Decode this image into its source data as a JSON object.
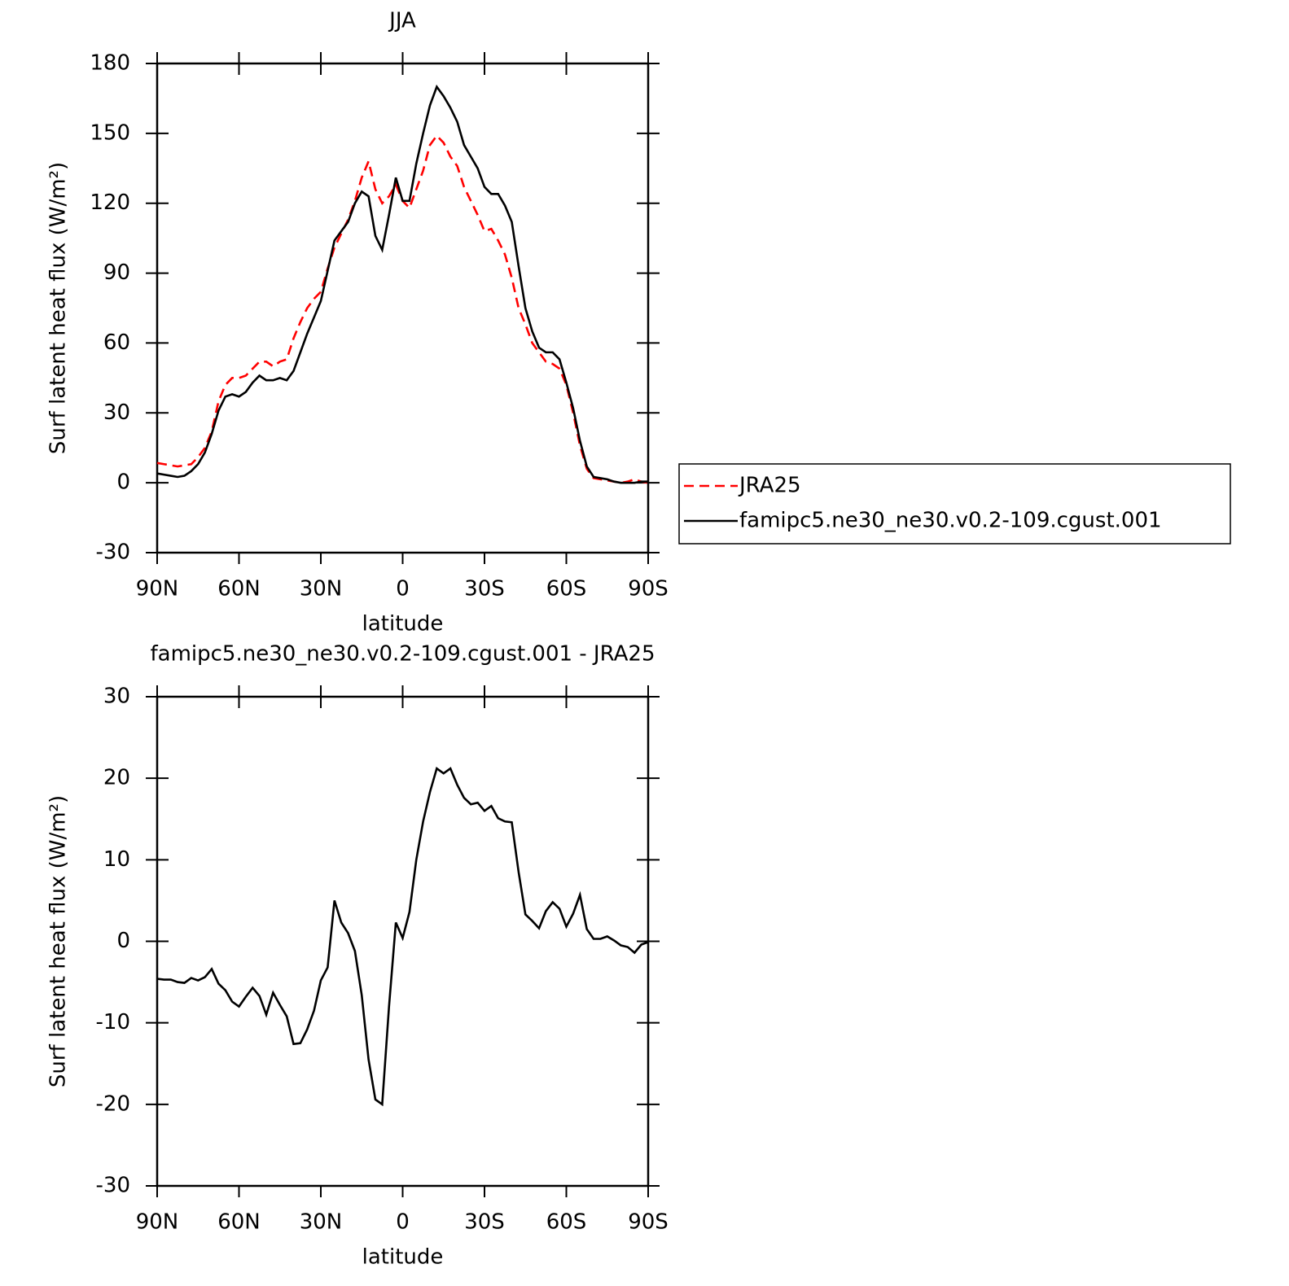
{
  "chart_data": [
    {
      "type": "line",
      "title": "JJA",
      "xlabel": "latitude",
      "ylabel": "Surf latent heat flux (W/m²)",
      "x": [
        90,
        87.5,
        85,
        82.5,
        80,
        77.5,
        75,
        72.5,
        70,
        67.5,
        65,
        62.5,
        60,
        57.5,
        55,
        52.5,
        50,
        47.5,
        45,
        42.5,
        40,
        37.5,
        35,
        32.5,
        30,
        27.5,
        25,
        22.5,
        20,
        17.5,
        15,
        12.5,
        10,
        7.5,
        5,
        2.5,
        0,
        -2.5,
        -5,
        -7.5,
        -10,
        -12.5,
        -15,
        -17.5,
        -20,
        -22.5,
        -25,
        -27.5,
        -30,
        -32.5,
        -35,
        -37.5,
        -40,
        -42.5,
        -45,
        -47.5,
        -50,
        -52.5,
        -55,
        -57.5,
        -60,
        -62.5,
        -65,
        -67.5,
        -70,
        -72.5,
        -75,
        -77.5,
        -80,
        -82.5,
        -85,
        -87.5,
        -90
      ],
      "xlim": [
        90,
        -90
      ],
      "xticks": [
        {
          "value": 90,
          "label": "90N"
        },
        {
          "value": 60,
          "label": "60N"
        },
        {
          "value": 30,
          "label": "30N"
        },
        0,
        {
          "value": -30,
          "label": "30S"
        },
        {
          "value": -60,
          "label": "60S"
        },
        {
          "value": -90,
          "label": "90S"
        }
      ],
      "ylim": [
        -30,
        180
      ],
      "yticks": [
        -30,
        0,
        30,
        60,
        90,
        120,
        150,
        180
      ],
      "legend": "right",
      "series": [
        {
          "name": "JRA25",
          "color": "#ff0000",
          "dash": "dashed",
          "values": [
            8.5,
            8,
            7.5,
            7,
            7.5,
            8,
            11,
            15,
            22,
            35,
            42,
            45,
            45,
            46,
            49,
            52,
            52,
            50,
            52,
            53,
            62,
            69,
            75,
            79,
            82,
            92,
            101,
            107,
            113,
            121,
            131,
            138,
            126,
            120,
            123,
            128,
            121,
            118,
            126,
            134,
            145,
            149,
            146,
            140,
            136,
            127,
            121,
            115,
            108,
            109,
            104,
            98,
            88,
            75,
            68,
            60,
            56,
            52,
            51,
            49,
            42,
            30,
            16,
            6,
            2,
            1.5,
            1,
            0.5,
            0,
            0.5,
            1.5,
            0.5,
            0
          ]
        },
        {
          "name": "famipc5.ne30_ne30.v0.2-109.cgust.001",
          "color": "#000000",
          "dash": "solid",
          "values": [
            4,
            3.5,
            3,
            2.5,
            3,
            5,
            8,
            13,
            21,
            31,
            37,
            38,
            37,
            39,
            43,
            46,
            44,
            44,
            45,
            44,
            48,
            56,
            64,
            71,
            78,
            91,
            104,
            108,
            112,
            120,
            125,
            123,
            106,
            100,
            115,
            131,
            121,
            121,
            137,
            150,
            162,
            170,
            166,
            161,
            155,
            145,
            140,
            135,
            127,
            124,
            124,
            119,
            112,
            93,
            75,
            65,
            58,
            56,
            56,
            53,
            43,
            32,
            18,
            7,
            2.5,
            2,
            1.5,
            0.5,
            0,
            0,
            0,
            0.5,
            0.5
          ]
        }
      ]
    },
    {
      "type": "line",
      "title": "famipc5.ne30_ne30.v0.2-109.cgust.001 - JRA25",
      "xlabel": "latitude",
      "ylabel": "Surf latent heat flux (W/m²)",
      "x": [
        90,
        87.5,
        85,
        82.5,
        80,
        77.5,
        75,
        72.5,
        70,
        67.5,
        65,
        62.5,
        60,
        57.5,
        55,
        52.5,
        50,
        47.5,
        45,
        42.5,
        40,
        37.5,
        35,
        32.5,
        30,
        27.5,
        25,
        22.5,
        20,
        17.5,
        15,
        12.5,
        10,
        7.5,
        5,
        2.5,
        0,
        -2.5,
        -5,
        -7.5,
        -10,
        -12.5,
        -15,
        -17.5,
        -20,
        -22.5,
        -25,
        -27.5,
        -30,
        -32.5,
        -35,
        -37.5,
        -40,
        -42.5,
        -45,
        -47.5,
        -50,
        -52.5,
        -55,
        -57.5,
        -60,
        -62.5,
        -65,
        -67.5,
        -70,
        -72.5,
        -75,
        -77.5,
        -80,
        -82.5,
        -85,
        -87.5,
        -90
      ],
      "xlim": [
        90,
        -90
      ],
      "xticks": [
        {
          "value": 90,
          "label": "90N"
        },
        {
          "value": 60,
          "label": "60N"
        },
        {
          "value": 30,
          "label": "30N"
        },
        0,
        {
          "value": -30,
          "label": "30S"
        },
        {
          "value": -60,
          "label": "60S"
        },
        {
          "value": -90,
          "label": "90S"
        }
      ],
      "ylim": [
        -30,
        30
      ],
      "yticks": [
        -30,
        -20,
        -10,
        0,
        10,
        20,
        30
      ],
      "series": [
        {
          "color": "#000000",
          "dash": "solid",
          "values": [
            -4.6,
            -4.7,
            -4.7,
            -5,
            -5.1,
            -4.5,
            -4.8,
            -4.4,
            -3.4,
            -5.2,
            -6,
            -7.4,
            -8,
            -6.8,
            -5.7,
            -6.7,
            -9,
            -6.3,
            -7.8,
            -9.2,
            -12.6,
            -12.5,
            -10.8,
            -8.5,
            -4.8,
            -3.2,
            5,
            2.3,
            1,
            -1.2,
            -6.6,
            -14.5,
            -19.4,
            -20,
            -8,
            2.3,
            0.4,
            3.6,
            10,
            14.7,
            18.3,
            21.2,
            20.6,
            21.2,
            19.2,
            17.6,
            16.8,
            17,
            16,
            16.6,
            15.1,
            14.7,
            14.6,
            8.5,
            3.3,
            2.5,
            1.6,
            3.7,
            4.8,
            4,
            1.8,
            3.4,
            5.7,
            1.5,
            0.3,
            0.3,
            0.6,
            0.1,
            -0.5,
            -0.7,
            -1.4,
            -0.4,
            -0.1
          ]
        }
      ]
    }
  ]
}
